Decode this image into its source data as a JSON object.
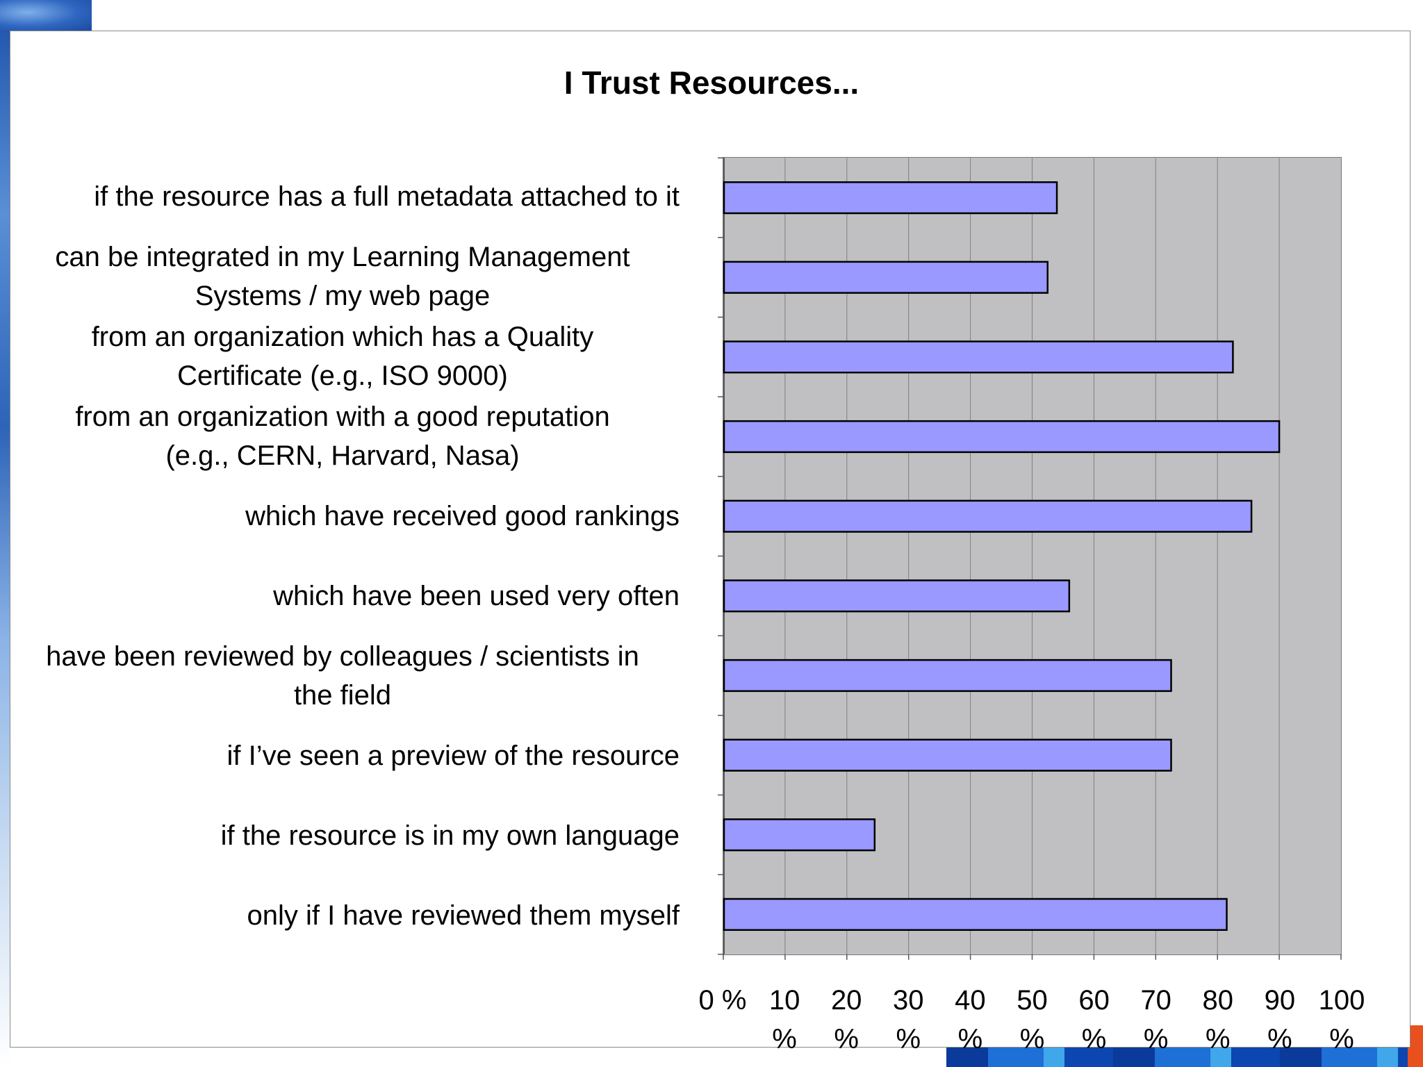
{
  "chart_data": {
    "type": "bar",
    "orientation": "horizontal",
    "title": "I Trust Resources...",
    "xlabel": "",
    "ylabel": "",
    "xlim": [
      0,
      100
    ],
    "grid": true,
    "legend": "none",
    "categories": [
      "if the resource has a full metadata attached to it",
      "can be integrated in my Learning Management Systems / my web page",
      "from an organization which has a Quality Certificate (e.g., ISO 9000)",
      "from an organization with a good reputation (e.g., CERN, Harvard, Nasa)",
      "which have received good rankings",
      "which have been used very often",
      "have been reviewed by colleagues / scientists in the field",
      "if I’ve seen a preview of the resource",
      "if the resource is in my own language",
      "only if I have reviewed them myself"
    ],
    "category_lines": [
      [
        "if the resource has a full metadata attached to it"
      ],
      [
        "can be integrated in my Learning Management",
        "Systems / my web page"
      ],
      [
        "from an organization which has a Quality",
        "Certificate (e.g., ISO 9000)"
      ],
      [
        "from an organization with a good reputation",
        "(e.g., CERN, Harvard, Nasa)"
      ],
      [
        "which have received good rankings"
      ],
      [
        "which have been used very often"
      ],
      [
        "have been reviewed by colleagues / scientists in",
        "the field"
      ],
      [
        "if I’ve seen a preview of the resource"
      ],
      [
        "if the resource is in my own language"
      ],
      [
        "only if I have reviewed them myself"
      ]
    ],
    "values": [
      54,
      52.5,
      82.5,
      90,
      85.5,
      56,
      72.5,
      72.5,
      24.5,
      81.5
    ],
    "x_ticks": [
      0,
      10,
      20,
      30,
      40,
      50,
      60,
      70,
      80,
      90,
      100
    ],
    "x_tick_labels": [
      [
        "0 %"
      ],
      [
        "10",
        "%"
      ],
      [
        "20",
        "%"
      ],
      [
        "30",
        "%"
      ],
      [
        "40",
        "%"
      ],
      [
        "50",
        "%"
      ],
      [
        "60",
        "%"
      ],
      [
        "70",
        "%"
      ],
      [
        "80",
        "%"
      ],
      [
        "90",
        "%"
      ],
      [
        "100",
        "%"
      ]
    ],
    "colors": {
      "bar_fill": "#9999ff",
      "bar_stroke": "#000000",
      "plot_background": "#c0bfc1",
      "gridline": "#808080"
    }
  }
}
